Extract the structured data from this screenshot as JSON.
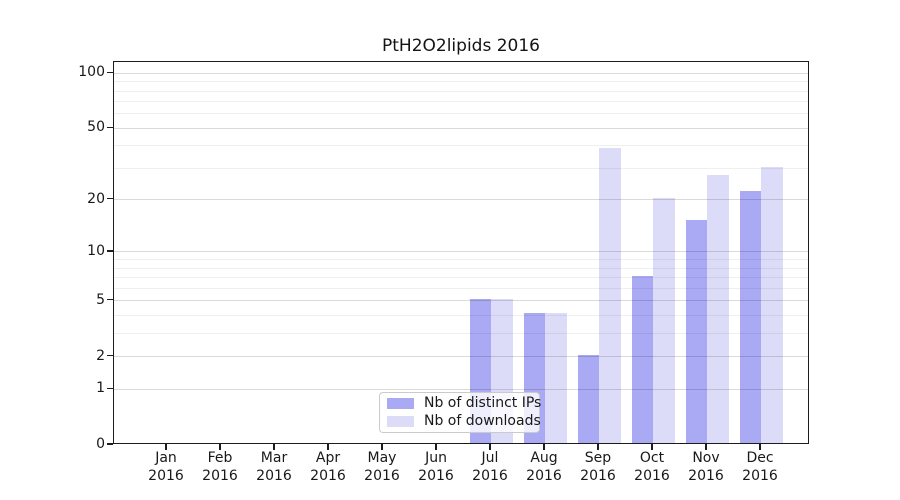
{
  "title": "PtH2O2lipids 2016",
  "colors": {
    "distinct_ips": "#a9a9f4",
    "downloads": "#dcdcf8",
    "grid_major": "#d9d9d9",
    "grid_minor": "#efefef",
    "axis": "#1c1c1c"
  },
  "y_axis": {
    "tick_values": [
      100,
      50,
      20,
      10,
      5,
      2,
      1,
      0
    ],
    "tick_labels": [
      "100",
      "50",
      "20",
      "10",
      "5",
      "2",
      "1",
      "0"
    ]
  },
  "x_axis": {
    "months": [
      "Jan",
      "Feb",
      "Mar",
      "Apr",
      "May",
      "Jun",
      "Jul",
      "Aug",
      "Sep",
      "Oct",
      "Nov",
      "Dec"
    ],
    "year": "2016"
  },
  "legend": {
    "items": [
      {
        "label": "Nb of distinct IPs",
        "color": "#a9a9f4"
      },
      {
        "label": "Nb of downloads",
        "color": "#dcdcf8"
      }
    ]
  },
  "chart_data": {
    "type": "bar",
    "title": "PtH2O2lipids 2016",
    "categories": [
      "Jan 2016",
      "Feb 2016",
      "Mar 2016",
      "Apr 2016",
      "May 2016",
      "Jun 2016",
      "Jul 2016",
      "Aug 2016",
      "Sep 2016",
      "Oct 2016",
      "Nov 2016",
      "Dec 2016"
    ],
    "series": [
      {
        "name": "Nb of distinct IPs",
        "color": "#a9a9f4",
        "values": [
          0,
          0,
          0,
          0,
          0,
          0,
          5,
          4,
          2,
          7,
          15,
          22
        ]
      },
      {
        "name": "Nb of downloads",
        "color": "#dcdcf8",
        "values": [
          0,
          0,
          0,
          0,
          0,
          0,
          5,
          4,
          38,
          20,
          27,
          30
        ]
      }
    ],
    "xlabel": "",
    "ylabel": "",
    "y_scale": "log1p",
    "y_ticks": [
      0,
      1,
      2,
      5,
      10,
      20,
      50,
      100
    ],
    "y_minor_ticks": [
      3,
      4,
      6,
      7,
      8,
      9,
      30,
      40,
      60,
      70,
      80,
      90
    ],
    "ylim": [
      0,
      114
    ],
    "grid": true,
    "legend_position": "lower center"
  }
}
